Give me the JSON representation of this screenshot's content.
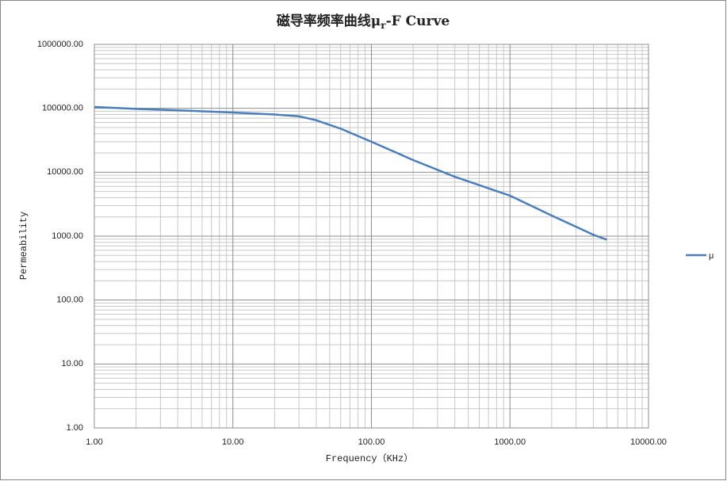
{
  "chart_data": {
    "type": "line",
    "title": [
      "磁导率频率曲线μ",
      "r",
      "-F Curve"
    ],
    "x_label": "Frequency（KHz）",
    "y_label": "Permeability",
    "x": [
      1,
      2,
      4,
      10,
      20,
      30,
      40,
      60,
      100,
      200,
      400,
      1000,
      2000,
      4000,
      5000
    ],
    "series": [
      {
        "name": "μ",
        "color": "#4a7ebb",
        "values": [
          105000,
          98000,
          93000,
          86000,
          80000,
          75000,
          65000,
          48000,
          30000,
          15500,
          8500,
          4300,
          2100,
          1050,
          880
        ]
      }
    ],
    "xlog": true,
    "ylog": true,
    "xlim": [
      1,
      10000
    ],
    "xticks": [
      {
        "value": 1,
        "label": "1.00"
      },
      {
        "value": 10,
        "label": "10.00"
      },
      {
        "value": 100,
        "label": "100.00"
      },
      {
        "value": 1000,
        "label": "1000.00"
      },
      {
        "value": 10000,
        "label": "10000.00"
      }
    ],
    "ylim": [
      1,
      1000000
    ],
    "yticks": [
      {
        "value": 1,
        "label": "1.00"
      },
      {
        "value": 10,
        "label": "10.00"
      },
      {
        "value": 100,
        "label": "100.00"
      },
      {
        "value": 1000,
        "label": "1000.00"
      },
      {
        "value": 10000,
        "label": "10000.00"
      },
      {
        "value": 100000,
        "label": "100000.00"
      },
      {
        "value": 1000000,
        "label": "1000000.00"
      }
    ],
    "grid": true,
    "minor_grid": true,
    "legend": "right"
  }
}
